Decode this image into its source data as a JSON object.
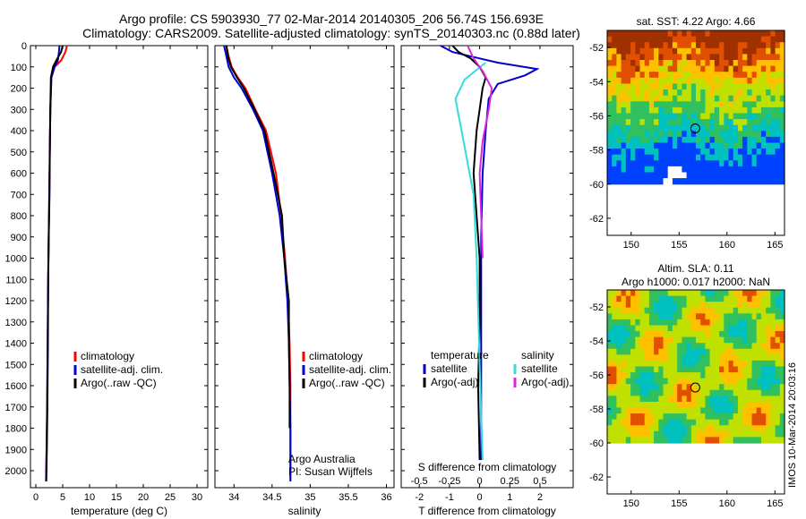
{
  "header": {
    "line1": "Argo profile: CS 5903930_77 02-Mar-2014 20140305_206 56.74S 156.693E",
    "line2": "Climatology: CARS2009. Satellite-adjusted climatology: synTS_20140303.nc (0.88d later)"
  },
  "colors": {
    "climatology": "#ff0000",
    "satellite": "#0000cc",
    "argo": "#000000",
    "satellite_salinity": "#33dddd",
    "argo_salinity_adj": "#dd22dd"
  },
  "credits": {
    "org": "Argo Australia",
    "pi": "PI: Susan Wijffels"
  },
  "timestamp": "IMOS 10-Mar-2014 20:03:16",
  "chart_data": [
    {
      "type": "line",
      "xlabel": "temperature (deg C)",
      "ylabel": "",
      "xlim": [
        -1,
        32
      ],
      "ylim": [
        2080,
        0
      ],
      "xticks": [
        0,
        5,
        10,
        15,
        20,
        25,
        30
      ],
      "yticks": [
        0,
        100,
        200,
        300,
        400,
        500,
        600,
        700,
        800,
        900,
        1000,
        1100,
        1200,
        1300,
        1400,
        1500,
        1600,
        1700,
        1800,
        1900,
        2000
      ],
      "legend": [
        "climatology",
        "satellite-adj. clim.",
        "Argo(..raw -QC)"
      ],
      "series": [
        {
          "name": "climatology",
          "color_key": "climatology",
          "x": [
            5.8,
            5.5,
            4.7,
            3.5,
            2.9,
            2.7,
            2.6,
            2.5,
            2.4,
            2.3,
            2.2,
            2.1,
            2.0,
            1.9
          ],
          "y": [
            0,
            30,
            70,
            100,
            150,
            300,
            500,
            700,
            900,
            1100,
            1400,
            1700,
            1900,
            2050
          ]
        },
        {
          "name": "satellite-adj. clim.",
          "color_key": "satellite",
          "x": [
            4.4,
            4.3,
            4.1,
            3.5,
            2.9,
            2.7,
            2.6,
            2.5,
            2.4,
            2.3,
            2.2,
            2.1,
            2.0,
            1.9
          ],
          "y": [
            0,
            30,
            70,
            100,
            150,
            300,
            500,
            700,
            900,
            1100,
            1400,
            1700,
            1900,
            2050
          ]
        },
        {
          "name": "Argo(..raw -QC)",
          "color_key": "argo",
          "x": [
            5.0,
            4.7,
            3.8,
            3.2,
            2.8,
            2.7,
            2.6,
            2.55,
            2.4,
            2.3,
            2.25,
            2.15,
            2.05,
            1.95
          ],
          "y": [
            0,
            30,
            70,
            100,
            150,
            300,
            500,
            700,
            900,
            1100,
            1400,
            1700,
            1900,
            2050
          ]
        }
      ]
    },
    {
      "type": "line",
      "xlabel": "salinity",
      "ylabel": "",
      "xlim": [
        33.75,
        36.1
      ],
      "ylim": [
        2080,
        0
      ],
      "xticks": [
        34,
        34.5,
        35,
        35.5,
        36
      ],
      "xtick_labels": [
        "34",
        "34.5",
        "35",
        "35.5",
        "36"
      ],
      "legend": [
        "climatology",
        "satellite-adj. clim.",
        "Argo(..raw -QC)"
      ],
      "series": [
        {
          "name": "climatology",
          "color_key": "climatology",
          "x": [
            33.9,
            33.93,
            33.97,
            34.05,
            34.15,
            34.28,
            34.42,
            34.55,
            34.62,
            34.67,
            34.71,
            34.73,
            34.74,
            34.74,
            34.74
          ],
          "y": [
            0,
            50,
            100,
            150,
            200,
            300,
            400,
            600,
            800,
            1000,
            1200,
            1400,
            1600,
            1800,
            2050
          ]
        },
        {
          "name": "satellite-adj. clim.",
          "color_key": "satellite",
          "x": [
            33.87,
            33.9,
            33.93,
            34.0,
            34.1,
            34.25,
            34.38,
            34.5,
            34.6,
            34.66,
            34.7,
            34.72,
            34.73,
            34.74,
            34.74
          ],
          "y": [
            0,
            50,
            100,
            150,
            200,
            300,
            400,
            600,
            800,
            1000,
            1200,
            1400,
            1600,
            1800,
            2050
          ]
        },
        {
          "name": "Argo(..raw -QC)",
          "color_key": "argo",
          "x": [
            33.9,
            33.92,
            33.96,
            34.04,
            34.13,
            34.27,
            34.4,
            34.52,
            34.63,
            34.66,
            34.72,
            34.72,
            34.73,
            34.73
          ],
          "y": [
            0,
            50,
            100,
            150,
            200,
            300,
            400,
            600,
            800,
            1000,
            1200,
            1400,
            1600,
            1800
          ]
        }
      ]
    },
    {
      "type": "line",
      "xlabel": "T difference from climatology",
      "xlabel_top": "S difference from climatology",
      "xlim": [
        -2.6,
        3.1
      ],
      "ylim": [
        2080,
        0
      ],
      "xticks": [
        -2,
        -1,
        0,
        1,
        2
      ],
      "xticks_salinity": [
        "-0.5",
        "-0.25",
        "0",
        "0.25",
        "0.5"
      ],
      "legend_temperature_title": "temperature",
      "legend_salinity_title": "salinity",
      "legend_temperature": [
        "satellite",
        "Argo(-adj)"
      ],
      "legend_salinity": [
        "satellite",
        "Argo(-adj)"
      ],
      "series": [
        {
          "name": "temperature satellite",
          "color_key": "satellite",
          "x": [
            -1.3,
            -0.9,
            0.0,
            0.6,
            1.9,
            1.5,
            0.6,
            0.3,
            0.2,
            0.1,
            0.05,
            0.05,
            0.05,
            0.05,
            0.05
          ],
          "y": [
            0,
            30,
            60,
            80,
            110,
            140,
            180,
            250,
            400,
            600,
            900,
            1200,
            1500,
            1800,
            1950
          ]
        },
        {
          "name": "temperature Argo(-adj)",
          "color_key": "argo",
          "x": [
            -0.9,
            -0.7,
            -0.3,
            0.0,
            0.2,
            0.1,
            0.0,
            -0.1,
            -0.2,
            -0.1,
            0.0,
            0.0,
            -0.05,
            0.0
          ],
          "y": [
            0,
            30,
            60,
            100,
            150,
            200,
            300,
            400,
            600,
            800,
            1000,
            1300,
            1600,
            1950
          ]
        },
        {
          "name": "salinity satellite",
          "color_key": "satellite_salinity",
          "x": [
            0.2,
            -0.5,
            -0.8,
            -0.6,
            -0.2,
            -0.1,
            0.0,
            0.1
          ],
          "y": [
            80,
            160,
            250,
            400,
            700,
            1000,
            1500,
            1950
          ]
        },
        {
          "name": "salinity Argo(-adj)",
          "color_key": "argo_salinity_adj",
          "x": [
            -0.4,
            -0.2,
            0.1,
            0.4,
            0.3,
            0.1,
            0.0,
            0.05,
            0.1
          ],
          "y": [
            0,
            60,
            120,
            200,
            300,
            450,
            600,
            800,
            1000
          ]
        }
      ]
    },
    {
      "type": "heatmap",
      "title": "sat. SST: 4.22  Argo: 4.66",
      "xlim": [
        147.5,
        166
      ],
      "ylim": [
        -63,
        -51
      ],
      "xticks": [
        150,
        155,
        160,
        165
      ],
      "yticks": [
        -52,
        -54,
        -56,
        -58,
        -60,
        -62
      ],
      "data_bottom_lat": -60,
      "marker": {
        "lon": 156.693,
        "lat": -56.74
      }
    },
    {
      "type": "heatmap",
      "title": "Altim. SLA: 0.11",
      "subtitle": "Argo h1000: 0.017  h2000: NaN",
      "xlim": [
        147.5,
        166
      ],
      "ylim": [
        -63,
        -51
      ],
      "xticks": [
        150,
        155,
        160,
        165
      ],
      "yticks": [
        -52,
        -54,
        -56,
        -58,
        -60,
        -62
      ],
      "data_bottom_lat": -60,
      "marker": {
        "lon": 156.693,
        "lat": -56.74
      }
    }
  ]
}
